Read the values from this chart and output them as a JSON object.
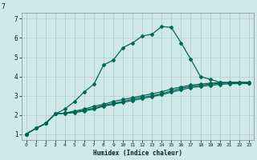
{
  "background_color": "#cfe8e8",
  "grid_color": "#b0cccc",
  "line_color": "#006655",
  "xlabel": "Humidex (Indice chaleur)",
  "xlim": [
    -0.5,
    23.5
  ],
  "ylim": [
    0.7,
    7.3
  ],
  "yticks": [
    1,
    2,
    3,
    4,
    5,
    6,
    7
  ],
  "xticks": [
    0,
    1,
    2,
    3,
    4,
    5,
    6,
    7,
    8,
    9,
    10,
    11,
    12,
    13,
    14,
    15,
    16,
    17,
    18,
    19,
    20,
    21,
    22,
    23
  ],
  "line_spike_x": [
    0,
    1,
    2,
    3,
    4,
    5,
    6,
    7,
    8,
    9,
    10,
    11,
    12,
    13,
    14,
    15,
    16,
    17,
    18,
    19,
    20,
    21,
    22,
    23
  ],
  "line_spike_y": [
    1.0,
    1.3,
    1.55,
    2.05,
    2.3,
    2.7,
    3.2,
    3.6,
    4.6,
    4.85,
    5.5,
    5.75,
    6.1,
    6.2,
    6.6,
    6.55,
    5.75,
    4.9,
    4.0,
    3.85,
    3.7,
    3.65,
    3.65,
    3.65
  ],
  "line_flat1_x": [
    0,
    1,
    2,
    3,
    4,
    5,
    6,
    7,
    8,
    9,
    10,
    11,
    12,
    13,
    14,
    15,
    16,
    17,
    18,
    19,
    20,
    21,
    22,
    23
  ],
  "line_flat1_y": [
    1.0,
    1.3,
    1.55,
    2.05,
    2.1,
    2.2,
    2.3,
    2.45,
    2.55,
    2.7,
    2.8,
    2.9,
    3.0,
    3.1,
    3.2,
    3.35,
    3.45,
    3.55,
    3.6,
    3.65,
    3.68,
    3.7,
    3.7,
    3.7
  ],
  "line_flat2_x": [
    0,
    1,
    2,
    3,
    4,
    5,
    6,
    7,
    8,
    9,
    10,
    11,
    12,
    13,
    14,
    15,
    16,
    17,
    18,
    19,
    20,
    21,
    22,
    23
  ],
  "line_flat2_y": [
    1.0,
    1.3,
    1.55,
    2.05,
    2.1,
    2.15,
    2.25,
    2.35,
    2.5,
    2.6,
    2.7,
    2.82,
    2.92,
    3.0,
    3.1,
    3.25,
    3.38,
    3.48,
    3.54,
    3.6,
    3.64,
    3.67,
    3.68,
    3.68
  ],
  "line_flat3_x": [
    0,
    1,
    2,
    3,
    4,
    5,
    6,
    7,
    8,
    9,
    10,
    11,
    12,
    13,
    14,
    15,
    16,
    17,
    18,
    19,
    20,
    21,
    22,
    23
  ],
  "line_flat3_y": [
    1.0,
    1.3,
    1.55,
    2.05,
    2.08,
    2.12,
    2.2,
    2.3,
    2.45,
    2.55,
    2.65,
    2.75,
    2.85,
    2.95,
    3.05,
    3.18,
    3.3,
    3.42,
    3.48,
    3.54,
    3.58,
    3.62,
    3.63,
    3.63
  ]
}
